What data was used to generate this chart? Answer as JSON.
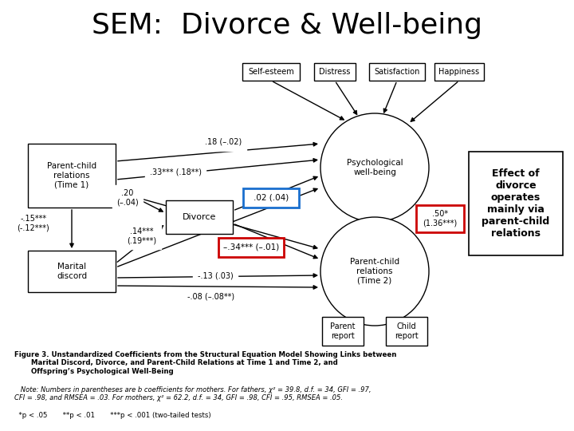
{
  "title": "SEM:  Divorce & Well-being",
  "title_fontsize": 26,
  "bg_color": "#ffffff",
  "annotation_text": "Effect of\ndivorce\noperates\nmainly via\nparent-child\nrelations",
  "figure_caption": "Figure 3. Unstandardized Coefficients from the Structural Equation Model Showing Links between\n       Marital Discord, Divorce, and Parent-Child Relations at Time 1 and Time 2, and\n       Offspring’s Psychological Well-Being",
  "note_text": "   Note: Numbers in parentheses are b coefficients for mothers. For fathers, χ² = 39.8, d.f. = 34, GFI = .97,\nCFI = .98, and RMSEA = .03. For mothers, χ² = 62.2, d.f. = 34, GFI = .98, CFI = .95, RMSEA = .05.",
  "sig_text": "  *p < .05       **p < .01       ***p < .001 (two-tailed tests)"
}
